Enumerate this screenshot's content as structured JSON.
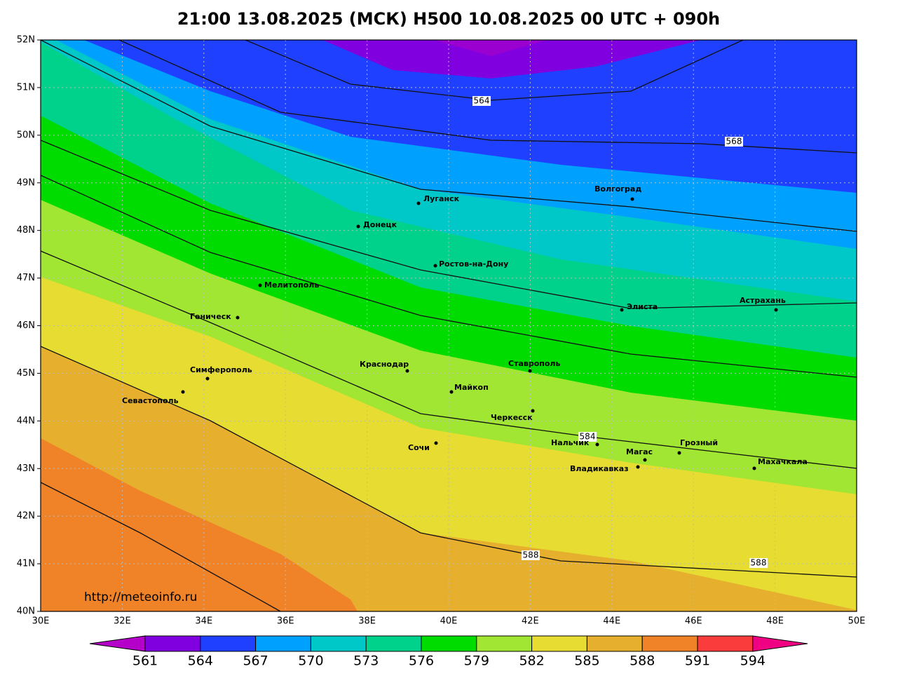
{
  "title": "21:00 13.08.2025 (МСК) H500  10.08.2025 00 UTC + 090h",
  "axes": {
    "lat_labels": [
      "52N",
      "51N",
      "50N",
      "49N",
      "48N",
      "47N",
      "46N",
      "45N",
      "44N",
      "43N",
      "42N",
      "41N",
      "40N"
    ],
    "lon_labels": [
      "30E",
      "32E",
      "34E",
      "36E",
      "38E",
      "40E",
      "42E",
      "44E",
      "46E",
      "48E",
      "50E"
    ]
  },
  "cities": [
    "Луганск",
    "Донецк",
    "Волгоград",
    "Ростов-на-Дону",
    "Мелитополь",
    "Элиста",
    "Астрахань",
    "Геническ",
    "Симферополь",
    "Севастополь",
    "Краснодар",
    "Ставрополь",
    "Майкоп",
    "Черкесск",
    "Сочи",
    "Нальчик",
    "Грозный",
    "Магас",
    "Владикавказ",
    "Махачкала"
  ],
  "contour_labels": [
    "564",
    "568",
    "584",
    "588",
    "588"
  ],
  "colorbar": {
    "labels": [
      561,
      564,
      567,
      570,
      573,
      576,
      579,
      582,
      585,
      588,
      591,
      594
    ]
  },
  "source": "http://meteoinfo.ru"
}
